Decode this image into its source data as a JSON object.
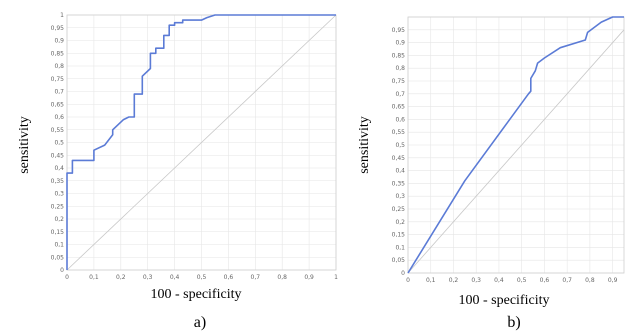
{
  "chart_data": [
    {
      "type": "line",
      "panel_label": "a)",
      "xlabel": "100 - specificity",
      "ylabel": "sensitivity",
      "xlim": [
        0,
        1
      ],
      "ylim": [
        0,
        1
      ],
      "x_ticks": [
        "0",
        "0,1",
        "0,2",
        "0,3",
        "0,4",
        "0,5",
        "0,6",
        "0,7",
        "0,8",
        "0,9",
        "1"
      ],
      "y_ticks": [
        "0",
        "0,05",
        "0,1",
        "0,15",
        "0,2",
        "0,25",
        "0,3",
        "0,35",
        "0,4",
        "0,45",
        "0,5",
        "0,55",
        "0,6",
        "0,65",
        "0,7",
        "0,75",
        "0,8",
        "0,85",
        "0,9",
        "0,95",
        "1"
      ],
      "grid": true,
      "reference_line": true,
      "curve_color": "#5b7bd6",
      "series": [
        {
          "x": [
            0,
            0,
            0.02,
            0.02,
            0.1,
            0.1,
            0.14,
            0.17,
            0.17,
            0.19,
            0.21,
            0.23,
            0.25,
            0.25,
            0.28,
            0.28,
            0.31,
            0.31,
            0.33,
            0.33,
            0.36,
            0.36,
            0.38,
            0.38,
            0.4,
            0.4,
            0.43,
            0.43,
            0.5,
            0.52,
            0.55,
            1.0
          ],
          "y": [
            0,
            0.38,
            0.38,
            0.43,
            0.43,
            0.47,
            0.49,
            0.53,
            0.55,
            0.57,
            0.59,
            0.6,
            0.6,
            0.69,
            0.69,
            0.76,
            0.79,
            0.85,
            0.85,
            0.87,
            0.87,
            0.92,
            0.92,
            0.96,
            0.96,
            0.97,
            0.97,
            0.98,
            0.98,
            0.99,
            1.0,
            1.0
          ]
        }
      ]
    },
    {
      "type": "line",
      "panel_label": "b)",
      "xlabel": "100 - specificity",
      "ylabel": "sensitivity",
      "xlim": [
        0,
        0.95
      ],
      "ylim": [
        0,
        1
      ],
      "x_ticks": [
        "0",
        "0,1",
        "0,2",
        "0,3",
        "0,4",
        "0,5",
        "0,6",
        "0,7",
        "0,8",
        "0,9"
      ],
      "y_ticks": [
        "",
        "0,95",
        "0,9",
        "0,85",
        "0,8",
        "0,75",
        "0,7",
        "0,65",
        "0,6",
        "0,55",
        "0,5",
        "0,45",
        "0,4",
        "0,35",
        "0,3",
        "0,25",
        "0,2",
        "0,15",
        "0,1",
        "0,05",
        "0"
      ],
      "grid": true,
      "reference_line": true,
      "curve_color": "#5b7bd6",
      "series": [
        {
          "x": [
            0,
            0.25,
            0.53,
            0.54,
            0.54,
            0.56,
            0.57,
            0.6,
            0.67,
            0.78,
            0.79,
            0.85,
            0.9,
            0.95
          ],
          "y": [
            0,
            0.36,
            0.7,
            0.71,
            0.76,
            0.79,
            0.82,
            0.84,
            0.88,
            0.91,
            0.94,
            0.98,
            1.0,
            1.0
          ]
        }
      ]
    }
  ]
}
